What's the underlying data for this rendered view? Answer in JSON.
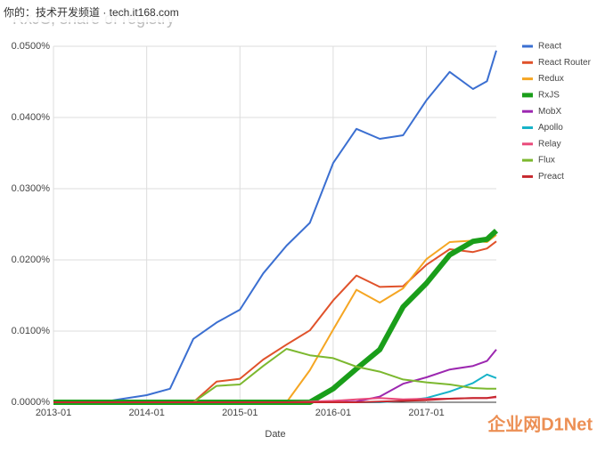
{
  "chart_data": {
    "type": "line",
    "title": "RxJS, share of registry",
    "xlabel": "Date",
    "x": [
      2013,
      2013.25,
      2013.5,
      2013.75,
      2014,
      2014.25,
      2014.5,
      2014.75,
      2015,
      2015.25,
      2015.5,
      2015.75,
      2016,
      2016.25,
      2016.5,
      2016.75,
      2017,
      2017.25,
      2017.5,
      2017.65,
      2017.75
    ],
    "xlim": [
      2013,
      2017.75
    ],
    "xticks": [
      {
        "value": 2013,
        "label": "2013-01"
      },
      {
        "value": 2014,
        "label": "2014-01"
      },
      {
        "value": 2015,
        "label": "2015-01"
      },
      {
        "value": 2016,
        "label": "2016-01"
      },
      {
        "value": 2017,
        "label": "2017-01"
      }
    ],
    "ylim": [
      0,
      0.05
    ],
    "yticks": [
      {
        "value": 0,
        "label": "0.0000%"
      },
      {
        "value": 0.01,
        "label": "0.0100%"
      },
      {
        "value": 0.02,
        "label": "0.0200%"
      },
      {
        "value": 0.03,
        "label": "0.0300%"
      },
      {
        "value": 0.04,
        "label": "0.0400%"
      },
      {
        "value": 0.05,
        "label": "0.0500%"
      }
    ],
    "grid": true,
    "legend": "right",
    "series": [
      {
        "name": "React",
        "color": "#3b6fd1",
        "values": [
          0,
          0,
          0,
          0.0005,
          0.001,
          0.0019,
          0.0089,
          0.0112,
          0.013,
          0.0181,
          0.022,
          0.0252,
          0.0336,
          0.0384,
          0.037,
          0.0375,
          0.0424,
          0.0464,
          0.044,
          0.0451,
          0.0494
        ]
      },
      {
        "name": "React Router",
        "color": "#e0522b",
        "values": [
          0,
          0,
          0,
          0,
          0,
          0,
          0,
          0.0029,
          0.0033,
          0.006,
          0.0081,
          0.0101,
          0.0143,
          0.0178,
          0.0162,
          0.0163,
          0.0193,
          0.0215,
          0.0211,
          0.0216,
          0.0226
        ]
      },
      {
        "name": "Redux",
        "color": "#f5a623",
        "values": [
          0,
          0,
          0,
          0,
          0,
          0,
          0,
          0,
          0,
          0,
          0,
          0.0045,
          0.0102,
          0.0158,
          0.014,
          0.016,
          0.0201,
          0.0225,
          0.0227,
          0.0225,
          0.0235
        ]
      },
      {
        "name": "RxJS",
        "color": "#1a9e1a",
        "width": 6,
        "values": [
          0,
          0,
          0,
          0,
          0,
          0,
          0,
          0,
          0,
          0,
          0,
          0,
          0.0019,
          0.0047,
          0.0074,
          0.0134,
          0.0167,
          0.0207,
          0.0226,
          0.0229,
          0.0241
        ]
      },
      {
        "name": "MobX",
        "color": "#9c27b0",
        "values": [
          0,
          0,
          0,
          0,
          0,
          0,
          0,
          0,
          0,
          0,
          0,
          0,
          0,
          0.0001,
          0.0008,
          0.0026,
          0.0035,
          0.0046,
          0.0051,
          0.0058,
          0.0074
        ]
      },
      {
        "name": "Apollo",
        "color": "#17b3c8",
        "values": [
          0,
          0,
          0,
          0,
          0,
          0,
          0,
          0,
          0,
          0,
          0,
          0,
          0,
          0,
          0,
          0.0002,
          0.0006,
          0.0015,
          0.0027,
          0.0039,
          0.0034
        ]
      },
      {
        "name": "Relay",
        "color": "#e94a7a",
        "values": [
          0,
          0,
          0,
          0,
          0,
          0,
          0,
          0,
          0,
          0,
          0,
          0.0001,
          0.0002,
          0.0004,
          0.0006,
          0.0004,
          0.0005,
          0.0005,
          0.0006,
          0.0006,
          0.0007
        ]
      },
      {
        "name": "Flux",
        "color": "#7cb82f",
        "values": [
          0,
          0,
          0,
          0,
          0,
          0,
          0,
          0.0023,
          0.0025,
          0.0051,
          0.0075,
          0.0066,
          0.0062,
          0.005,
          0.0043,
          0.0032,
          0.0028,
          0.0025,
          0.002,
          0.0019,
          0.0019
        ]
      },
      {
        "name": "Preact",
        "color": "#c6282e",
        "values": [
          0,
          0,
          0,
          0,
          0,
          0,
          0,
          0,
          0,
          0,
          0,
          0,
          0,
          0,
          0.0001,
          0.0002,
          0.0003,
          0.0005,
          0.0006,
          0.0006,
          0.0008
        ]
      }
    ]
  },
  "watermarks": [
    "你的：技术开发频道 · tech.it168.com",
    "企业网D1Net"
  ]
}
